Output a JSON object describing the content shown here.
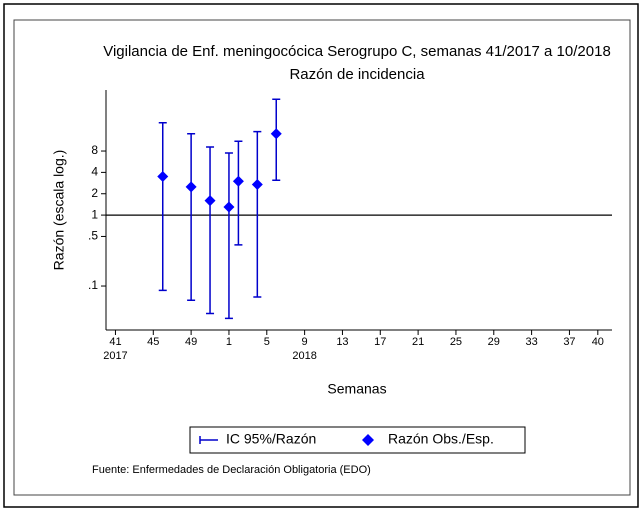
{
  "chart_data": {
    "type": "scatter",
    "title": "Vigilancia de Enf. meningocócica Serogrupo C, semanas 41/2017 a 10/2018",
    "subtitle": "Razón de incidencia",
    "x_label": "Semanas",
    "y_label": "Razón (escala log.)",
    "source": "Fuente: Enfermedades de Declaración Obligatoria (EDO)",
    "x": [
      5,
      8,
      10,
      12,
      13,
      15,
      17
    ],
    "series": [
      {
        "name": "IC 95%/Razón",
        "color": "#0000cc",
        "lower": [
          0.087,
          0.063,
          0.041,
          0.035,
          0.38,
          0.07,
          3.1
        ],
        "upper": [
          20,
          14,
          9.1,
          7.5,
          11,
          15,
          43
        ]
      },
      {
        "name": "Razón Obs./Esp.",
        "color": "#0000ff",
        "values": [
          3.5,
          2.5,
          1.6,
          1.3,
          3.0,
          2.7,
          14
        ]
      }
    ],
    "xlim": [
      -1,
      52.5
    ],
    "xticks": [
      {
        "value": 0,
        "label": "41"
      },
      {
        "value": 4,
        "label": "45"
      },
      {
        "value": 8,
        "label": "49"
      },
      {
        "value": 12,
        "label": "1"
      },
      {
        "value": 16,
        "label": "5"
      },
      {
        "value": 20,
        "label": "9"
      },
      {
        "value": 24,
        "label": "13"
      },
      {
        "value": 28,
        "label": "17"
      },
      {
        "value": 32,
        "label": "21"
      },
      {
        "value": 36,
        "label": "25"
      },
      {
        "value": 40,
        "label": "29"
      },
      {
        "value": 44,
        "label": "33"
      },
      {
        "value": 48,
        "label": "37"
      },
      {
        "value": 51,
        "label": "40"
      }
    ],
    "year_labels": [
      {
        "value": 0,
        "label": "2017"
      },
      {
        "value": 20,
        "label": "2018"
      }
    ],
    "ylim": [
      0.024,
      58
    ],
    "yticks": [
      {
        "value": 0.1,
        "label": ".1"
      },
      {
        "value": 0.5,
        "label": ".5"
      },
      1,
      2,
      4,
      8
    ],
    "log_y": true,
    "refline": 1,
    "legend": "bottom"
  }
}
